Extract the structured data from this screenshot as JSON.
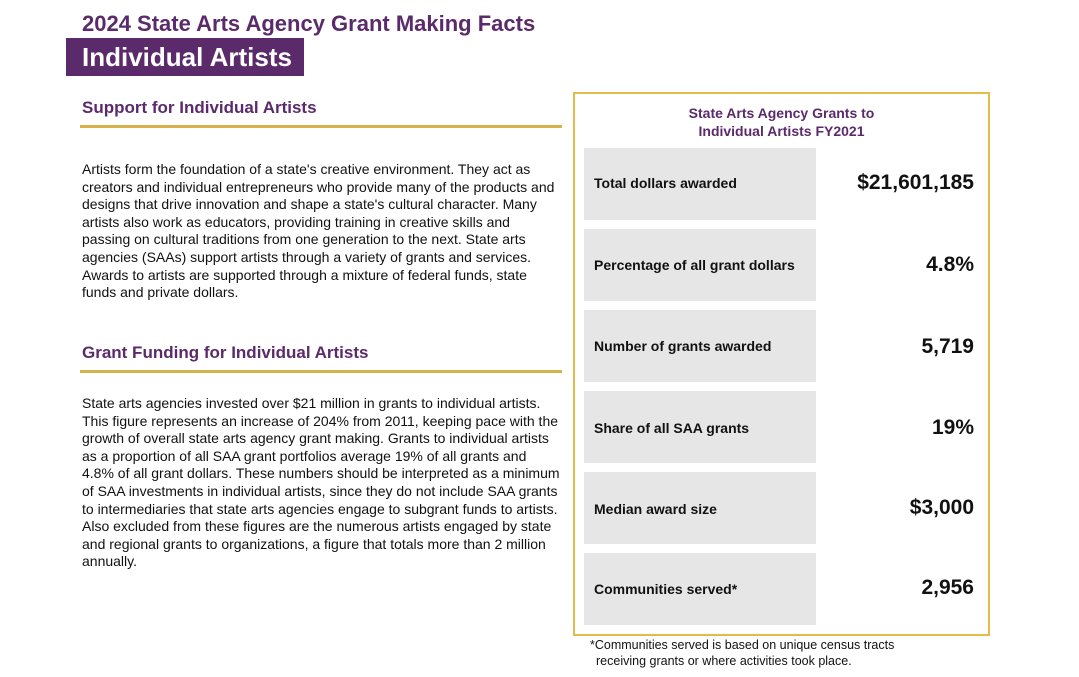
{
  "header": {
    "title": "2024 State Arts Agency Grant Making Facts",
    "subtitle": "Individual Artists"
  },
  "sections": [
    {
      "heading": "Support for Individual Artists",
      "body": "Artists form the foundation of a state's creative environment. They act as creators and individual entrepreneurs who provide many of the products and designs that drive innovation and shape a state's cultural character. Many artists also work as educators, providing training in creative skills and passing on cultural traditions from one generation to the next. State arts agencies (SAAs) support artists through a variety of grants and services. Awards to artists are supported through a mixture of federal funds, state funds and private dollars."
    },
    {
      "heading": "Grant Funding for Individual Artists",
      "body": "State arts agencies invested over $21 million in grants to individual artists. This figure represents an increase of 204% from 2011, keeping pace with the growth of overall state arts agency grant making. Grants to individual artists as a proportion of all SAA grant portfolios average 19% of all grants and 4.8% of all grant dollars. These numbers should be interpreted as a minimum of SAA investments in individual artists, since they do not include SAA grants to intermediaries that state arts agencies engage to subgrant funds to artists. Also excluded from these figures are the numerous artists engaged by state and regional grants to organizations, a figure that totals more than 2 million annually."
    }
  ],
  "panel": {
    "title_line1": "State Arts Agency Grants to",
    "title_line2": "Individual Artists FY2021",
    "stats": [
      {
        "label": "Total dollars awarded",
        "value": "$21,601,185"
      },
      {
        "label": "Percentage of all grant dollars",
        "value": "4.8%"
      },
      {
        "label": "Number of grants awarded",
        "value": "5,719"
      },
      {
        "label": "Share of all SAA grants",
        "value": "19%"
      },
      {
        "label": "Median award size",
        "value": "$3,000"
      },
      {
        "label": "Communities served*",
        "value": "2,956"
      }
    ]
  },
  "footnote": {
    "line1": "*Communities served is based on unique census tracts",
    "line2": "receiving grants or where activities took place."
  }
}
